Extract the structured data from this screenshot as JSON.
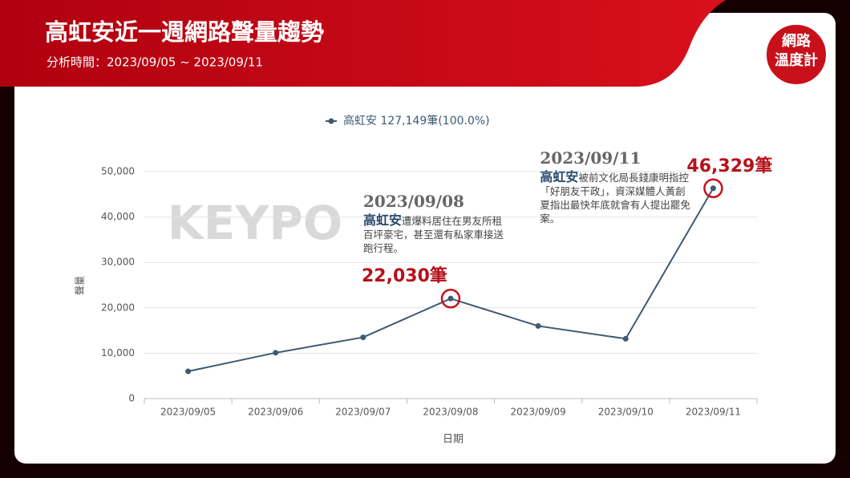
{
  "header": {
    "title": "高虹安近一週網路聲量趨勢",
    "subtitle": "分析時間：2023/09/05 ~ 2023/09/11"
  },
  "logo": {
    "lines": [
      "網路",
      "溫度計"
    ]
  },
  "watermark": "KEYPO",
  "chart_data": {
    "type": "line",
    "x_label": "日期",
    "y_label": "聲量",
    "categories": [
      "2023/09/05",
      "2023/09/06",
      "2023/09/07",
      "2023/09/08",
      "2023/09/09",
      "2023/09/10",
      "2023/09/11"
    ],
    "series": [
      {
        "name": "高虹安 127,149筆(100.0%)",
        "color": "#3d5a73",
        "values": [
          6000,
          10100,
          13500,
          22030,
          16000,
          13190,
          46329
        ],
        "value_labels": [
          null,
          null,
          null,
          "22,030筆",
          null,
          null,
          "46,329筆"
        ]
      }
    ],
    "ylim": [
      0,
      50000
    ],
    "yticks": [
      0,
      {
        "value": 10000,
        "label": "10,000"
      },
      {
        "value": 20000,
        "label": "20,000"
      },
      {
        "value": 30000,
        "label": "30,000"
      },
      {
        "value": 40000,
        "label": "40,000"
      },
      {
        "value": 50000,
        "label": "50,000"
      }
    ],
    "grid": true,
    "annotations": [
      {
        "date": "2023/09/08",
        "name": "高虹安",
        "text": "遭爆料居住在男友所租百坪豪宅，甚至還有私家車接送跑行程。"
      },
      {
        "date": "2023/09/11",
        "name": "高虹安",
        "text": "被前文化局長錢康明指控「好朋友干政」，資深媒體人黃創夏指出最快年底就會有人提出罷免案。"
      }
    ]
  }
}
